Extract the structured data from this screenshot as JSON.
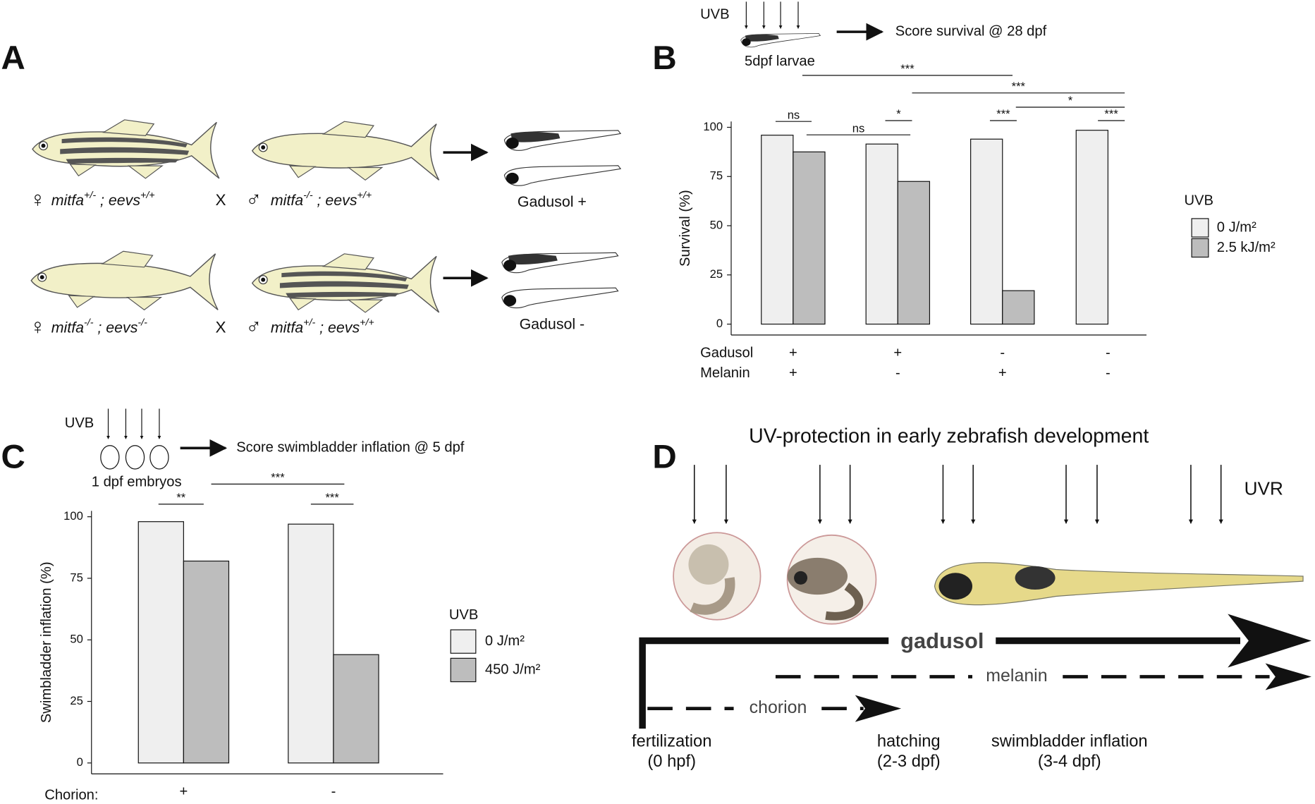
{
  "figure": {
    "panel_labels": [
      "A",
      "B",
      "C",
      "D"
    ],
    "panel_a": {
      "crosses": [
        {
          "female_symbol": "♀",
          "female": [
            {
              "text": "mitfa"
            },
            {
              "text": "+/-",
              "sup": true
            },
            {
              "text": " ; eevs"
            },
            {
              "text": "+/+",
              "sup": true
            }
          ],
          "cross": "X",
          "male_symbol": "♂",
          "male": [
            {
              "text": "mitfa"
            },
            {
              "text": "-/-",
              "sup": true
            },
            {
              "text": " ; eevs"
            },
            {
              "text": "+/+",
              "sup": true
            }
          ],
          "result": "Gadusol +"
        },
        {
          "female_symbol": "♀",
          "female": [
            {
              "text": "mitfa"
            },
            {
              "text": "-/-",
              "sup": true
            },
            {
              "text": " ; eevs"
            },
            {
              "text": "-/-",
              "sup": true
            }
          ],
          "cross": "X",
          "male_symbol": "♂",
          "male": [
            {
              "text": "mitfa"
            },
            {
              "text": "+/-",
              "sup": true
            },
            {
              "text": " ; eevs"
            },
            {
              "text": "+/+",
              "sup": true
            }
          ],
          "result": "Gadusol -"
        }
      ]
    },
    "panel_b_scheme": {
      "uvb": "UVB",
      "stage": "5dpf larvae",
      "outcome": "Score survival @ 28 dpf"
    },
    "panel_c_scheme": {
      "uvb": "UVB",
      "stage": "1 dpf embryos",
      "outcome": "Score  swimbladder inflation @ 5 dpf"
    },
    "panel_d": {
      "title": "UV-protection in early zebrafish development",
      "uvr": "UVR",
      "gadusol": "gadusol",
      "melanin": "melanin",
      "chorion": "chorion",
      "stages": [
        {
          "name": "fertilization",
          "time": "(0 hpf)"
        },
        {
          "name": "hatching",
          "time": "(2-3 dpf)"
        },
        {
          "name": "swimbladder inflation",
          "time": "(3-4 dpf)"
        }
      ]
    }
  },
  "chart_data": [
    {
      "type": "bar",
      "ylabel": "Survival (%)",
      "ylim": [
        0,
        100
      ],
      "yticks": [
        0,
        25,
        50,
        75,
        100
      ],
      "rows": [
        {
          "name": "Gadusol",
          "labels": [
            "+",
            "+",
            "-",
            "-"
          ]
        },
        {
          "name": "Melanin",
          "labels": [
            "+",
            "-",
            "+",
            "-"
          ]
        }
      ],
      "series": [
        {
          "name": "0 J/m²",
          "color": "#efefef",
          "values": [
            96,
            91.5,
            94,
            98.5
          ]
        },
        {
          "name": "2.5 kJ/m²",
          "color": "#bdbdbd",
          "values": [
            87.5,
            72.5,
            17,
            0
          ]
        }
      ],
      "legend_title": "UVB",
      "significance": [
        "***",
        "***",
        "ns",
        "*",
        "ns",
        "*",
        "***",
        "***"
      ]
    },
    {
      "type": "bar",
      "ylabel": "Swimbladder inflation (%)",
      "xlabel": "Chorion:",
      "categories": [
        "+",
        "-"
      ],
      "ylim": [
        0,
        100
      ],
      "yticks": [
        0,
        25,
        50,
        75,
        100
      ],
      "series": [
        {
          "name": "0 J/m²",
          "color": "#efefef",
          "values": [
            98,
            97
          ]
        },
        {
          "name": "450 J/m²",
          "color": "#bdbdbd",
          "values": [
            82,
            44
          ]
        }
      ],
      "legend_title": "UVB",
      "significance": [
        "***",
        "**",
        "***"
      ]
    }
  ]
}
